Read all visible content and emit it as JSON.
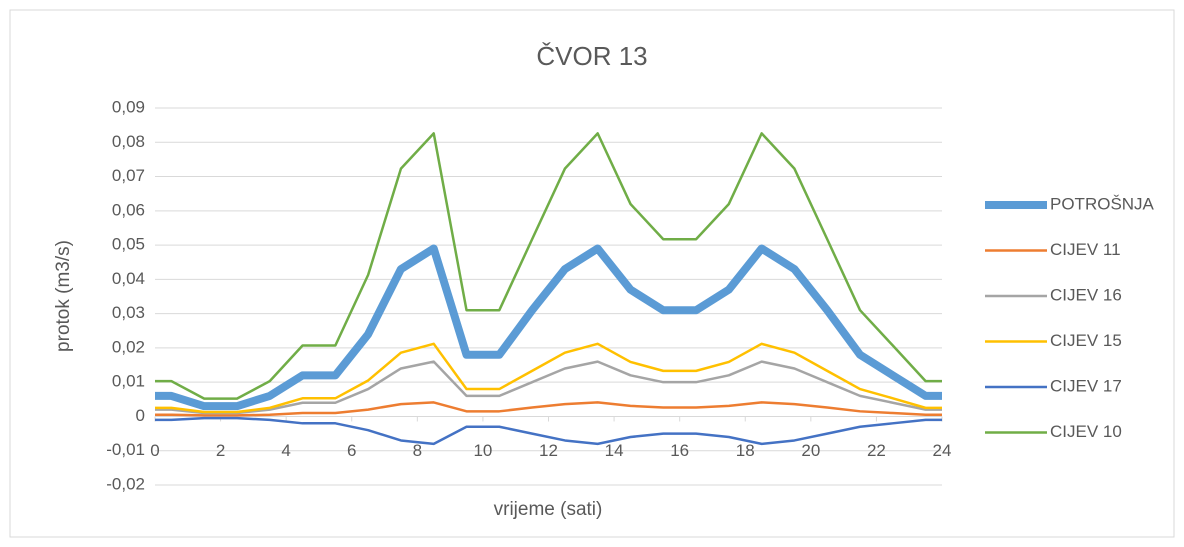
{
  "chart_data": {
    "type": "line",
    "title": "ČVOR 13",
    "x_label": "vrijeme (sati)",
    "y_label": "protok (m3/s)",
    "x": [
      0,
      0.5,
      1.5,
      2.5,
      3.5,
      4.5,
      5.5,
      6.5,
      7.5,
      8.5,
      9.5,
      10.5,
      11.5,
      12.5,
      13.5,
      14.5,
      15.5,
      16.5,
      17.5,
      18.5,
      19.5,
      20.5,
      21.5,
      22.5,
      23.5,
      24
    ],
    "series": [
      {
        "name": "POTROŠNJA",
        "color": "#5b9bd5",
        "width": 8,
        "values": [
          0.006,
          0.006,
          0.003,
          0.003,
          0.006,
          0.012,
          0.012,
          0.024,
          0.043,
          0.049,
          0.018,
          0.018,
          0.031,
          0.043,
          0.049,
          0.037,
          0.031,
          0.031,
          0.037,
          0.049,
          0.043,
          0.031,
          0.018,
          0.012,
          0.006,
          0.006
        ]
      },
      {
        "name": "CIJEV 11",
        "color": "#ed7d31",
        "width": 2.5,
        "values": [
          0.0005,
          0.0005,
          0.0003,
          0.0003,
          0.0005,
          0.001,
          0.001,
          0.002,
          0.0036,
          0.0041,
          0.0015,
          0.0015,
          0.0026,
          0.0036,
          0.0041,
          0.0031,
          0.0026,
          0.0026,
          0.0031,
          0.0041,
          0.0036,
          0.0026,
          0.0015,
          0.001,
          0.0005,
          0.0005
        ]
      },
      {
        "name": "CIJEV 16",
        "color": "#a5a5a5",
        "width": 2.5,
        "values": [
          0.002,
          0.002,
          0.001,
          0.001,
          0.002,
          0.004,
          0.004,
          0.008,
          0.014,
          0.016,
          0.006,
          0.006,
          0.01,
          0.014,
          0.016,
          0.012,
          0.01,
          0.01,
          0.012,
          0.016,
          0.014,
          0.01,
          0.006,
          0.004,
          0.002,
          0.002
        ]
      },
      {
        "name": "CIJEV 15",
        "color": "#ffc000",
        "width": 2.5,
        "values": [
          0.0025,
          0.0025,
          0.0013,
          0.0013,
          0.0025,
          0.0053,
          0.0053,
          0.0105,
          0.0186,
          0.0212,
          0.008,
          0.008,
          0.0133,
          0.0186,
          0.0212,
          0.0159,
          0.0133,
          0.0133,
          0.0159,
          0.0212,
          0.0186,
          0.0133,
          0.008,
          0.0053,
          0.0025,
          0.0025
        ]
      },
      {
        "name": "CIJEV 17",
        "color": "#4472c4",
        "width": 2.5,
        "values": [
          -0.001,
          -0.001,
          -0.0005,
          -0.0005,
          -0.001,
          -0.002,
          -0.002,
          -0.004,
          -0.007,
          -0.008,
          -0.003,
          -0.003,
          -0.005,
          -0.007,
          -0.008,
          -0.006,
          -0.005,
          -0.005,
          -0.006,
          -0.008,
          -0.007,
          -0.005,
          -0.003,
          -0.002,
          -0.001,
          -0.001
        ]
      },
      {
        "name": "CIJEV 10",
        "color": "#70ad47",
        "width": 2.5,
        "values": [
          0.0103,
          0.0103,
          0.0052,
          0.0052,
          0.0103,
          0.0207,
          0.0207,
          0.0413,
          0.0723,
          0.0826,
          0.031,
          0.031,
          0.0517,
          0.0723,
          0.0826,
          0.062,
          0.0517,
          0.0517,
          0.062,
          0.0826,
          0.0723,
          0.0517,
          0.031,
          0.0207,
          0.0103,
          0.0103
        ]
      }
    ],
    "xlim": [
      0,
      24
    ],
    "xticks": [
      0,
      2,
      4,
      6,
      8,
      10,
      12,
      14,
      16,
      18,
      20,
      22,
      24
    ],
    "ylim": [
      -0.02,
      0.09
    ],
    "yticks": [
      {
        "value": -0.02,
        "label": "-0,02"
      },
      {
        "value": -0.01,
        "label": "-0,01"
      },
      0,
      {
        "value": 0.01,
        "label": "0,01"
      },
      {
        "value": 0.02,
        "label": "0,02"
      },
      {
        "value": 0.03,
        "label": "0,03"
      },
      {
        "value": 0.04,
        "label": "0,04"
      },
      {
        "value": 0.05,
        "label": "0,05"
      },
      {
        "value": 0.06,
        "label": "0,06"
      },
      {
        "value": 0.07,
        "label": "0,07"
      },
      {
        "value": 0.08,
        "label": "0,08"
      },
      {
        "value": 0.09,
        "label": "0,09"
      }
    ],
    "grid": true,
    "legend": "right"
  }
}
